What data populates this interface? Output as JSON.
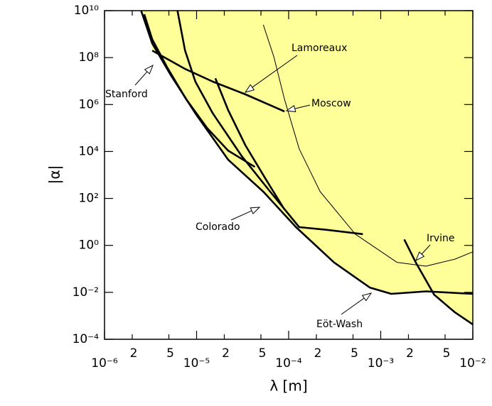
{
  "chart_data": {
    "type": "line",
    "x_label": "λ  [m]",
    "y_label": "|α|",
    "xscale": "log",
    "yscale": "log",
    "xlim": [
      1e-06,
      0.01
    ],
    "ylim": [
      0.0001,
      10000000000.0
    ],
    "fill_color": "#ffff99",
    "xticks": [
      {
        "value": 1e-06,
        "label": "10⁻⁶"
      },
      {
        "value": 2e-06,
        "label": "2"
      },
      {
        "value": 5e-06,
        "label": "5"
      },
      {
        "value": 1e-05,
        "label": "10⁻⁵"
      },
      {
        "value": 2e-05,
        "label": "2"
      },
      {
        "value": 5e-05,
        "label": "5"
      },
      {
        "value": 0.0001,
        "label": "10⁻⁴"
      },
      {
        "value": 0.0002,
        "label": "2"
      },
      {
        "value": 0.0005,
        "label": "5"
      },
      {
        "value": 0.001,
        "label": "10⁻³"
      },
      {
        "value": 0.002,
        "label": "2"
      },
      {
        "value": 0.005,
        "label": "5"
      },
      {
        "value": 0.01,
        "label": "10⁻²"
      }
    ],
    "yticks": [
      {
        "value": 10000000000.0,
        "label": "10¹⁰"
      },
      {
        "value": 100000000.0,
        "label": "10⁸"
      },
      {
        "value": 1000000.0,
        "label": "10⁶"
      },
      {
        "value": 10000.0,
        "label": "10⁴"
      },
      {
        "value": 100.0,
        "label": "10²"
      },
      {
        "value": 1,
        "label": "10⁰"
      },
      {
        "value": 0.01,
        "label": "10⁻²"
      },
      {
        "value": 0.0001,
        "label": "10⁻⁴"
      }
    ],
    "series": [
      {
        "name": "Stanford",
        "color": "#000000",
        "fill": true,
        "x": [
          2.7e-06,
          3.3e-06,
          4.8e-06,
          7.7e-06,
          1.3e-05,
          2.2e-05,
          4.3e-05
        ],
        "values": [
          7000000000.0,
          600000000.0,
          38000000.0,
          1700000.0,
          100000.0,
          11000.0,
          2200.0
        ]
      },
      {
        "name": "Lamoreaux",
        "color": "#000000",
        "fill": true,
        "x": [
          3.3e-06,
          7.5e-06,
          1.5e-05,
          3.4e-05,
          9e-05
        ],
        "values": [
          200000000.0,
          33000000.0,
          9500000.0,
          2700000.0,
          510000.0
        ]
      },
      {
        "name": "Colorado",
        "color": "#000000",
        "fill": true,
        "x": [
          6.2e-06,
          7.5e-06,
          9.7e-06,
          1.5e-05,
          3.1e-05,
          6.3e-05,
          0.00013,
          0.00026,
          0.00064,
          null,
          1.6e-05,
          2.2e-05,
          3.4e-05,
          5.8e-05,
          9e-05
        ],
        "values": [
          10000000000.0,
          200000000.0,
          9500000.0,
          420000.0,
          6300.0,
          195,
          6.0,
          4.6,
          3.0,
          null,
          13000000.0,
          590000.0,
          18000.0,
          550,
          34
        ]
      },
      {
        "name": "Eöt-Wash",
        "color": "#000000",
        "fill": true,
        "x": [
          2.5e-06,
          3.3e-06,
          5.2e-06,
          9.7e-06,
          2.2e-05,
          5.3e-05,
          0.00012,
          0.00031,
          0.00076,
          0.0013,
          0.0031,
          0.01
        ],
        "values": [
          10000000000.0,
          400000000.0,
          19000000.0,
          420000.0,
          4500.0,
          195,
          6.0,
          0.19,
          0.016,
          0.0086,
          0.011,
          0.0086
        ]
      },
      {
        "name": "Irvine",
        "color": "#000000",
        "fill": true,
        "x": [
          0.0018,
          0.0024,
          0.0038,
          0.0064,
          0.01
        ],
        "values": [
          1.8,
          0.19,
          0.008,
          0.0014,
          0.00043
        ]
      },
      {
        "name": "Moscow",
        "color": "#000000",
        "fill": false,
        "x": [
          5.3e-05,
          6.9e-05,
          9e-05,
          0.00013,
          0.00022,
          0.00053,
          0.0015,
          0.0031,
          0.0064,
          0.01
        ],
        "values": [
          2500000000.0,
          110000000.0,
          1700000.0,
          13000.0,
          195,
          3.0,
          0.19,
          0.13,
          0.26,
          0.53
        ]
      }
    ]
  }
}
